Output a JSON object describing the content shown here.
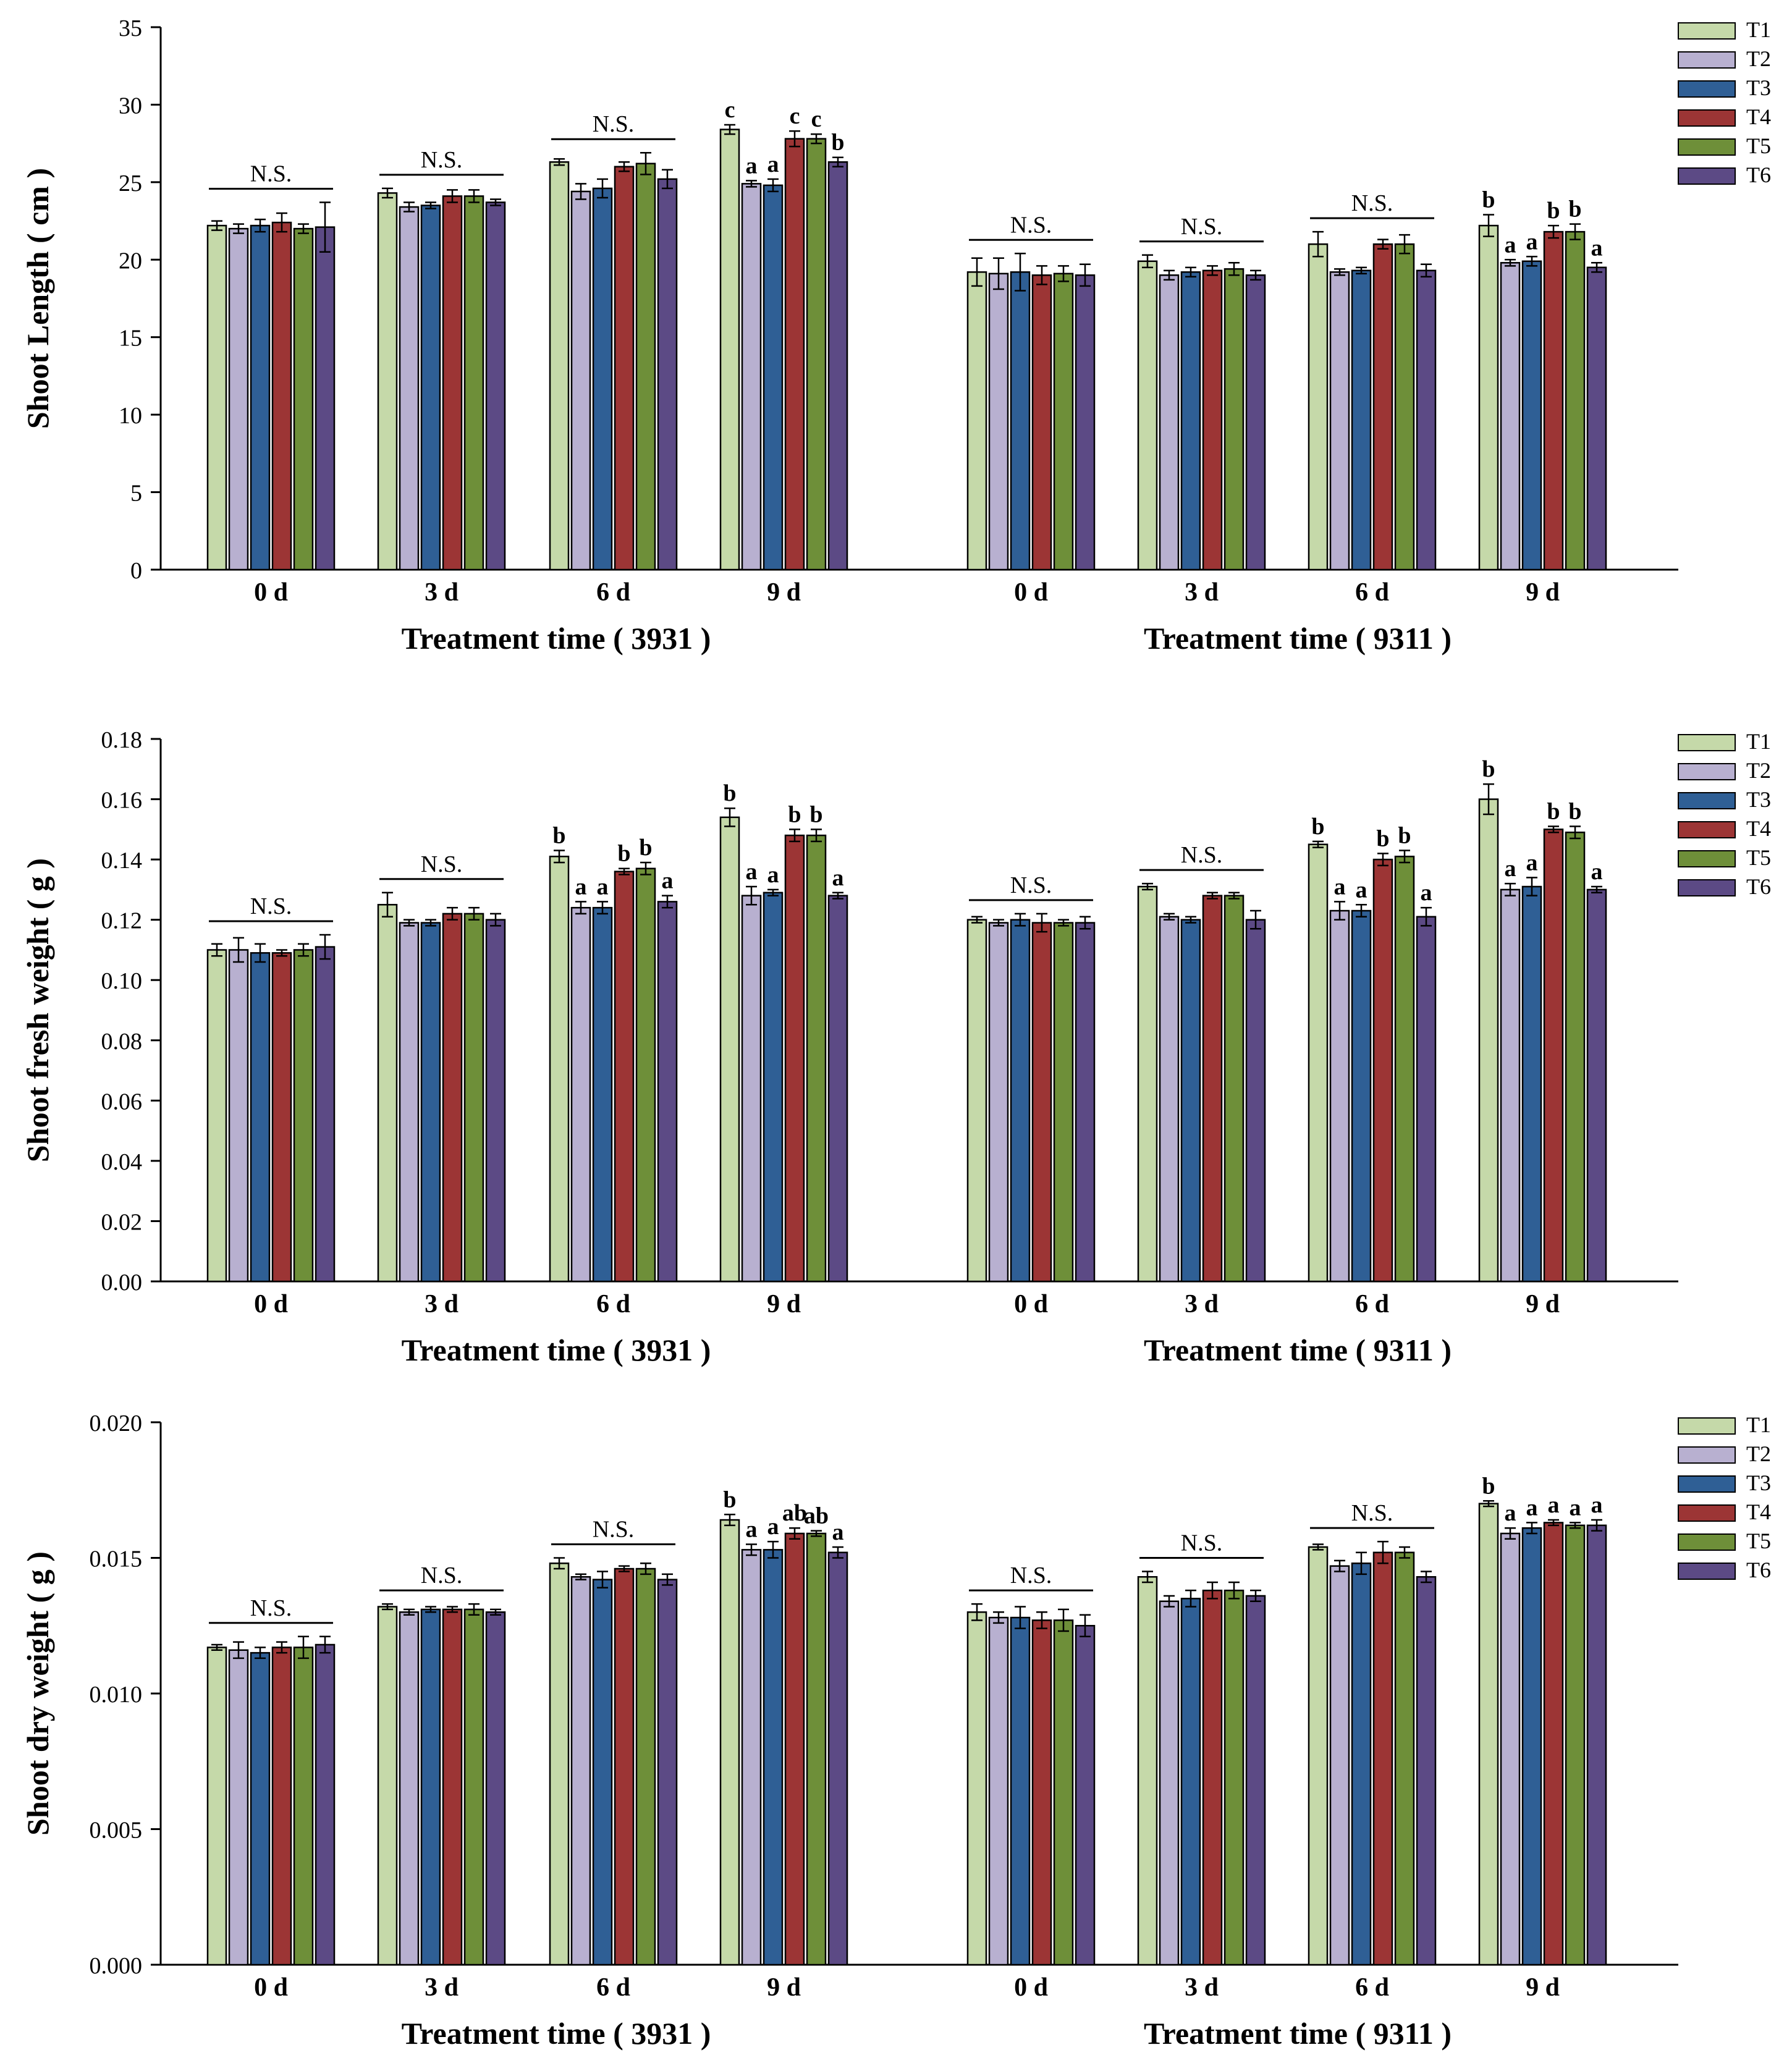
{
  "colors": {
    "T1": "#c5d9a9",
    "T2": "#b8b0d0",
    "T3": "#2f5f95",
    "T4": "#9c3535",
    "T5": "#6e8f39",
    "T6": "#5c4a85"
  },
  "chart_data": [
    {
      "type": "bar",
      "ylabel": "Shoot Length ( cm )",
      "ylim": [
        0,
        35
      ],
      "yticks": [
        "0",
        "5",
        "10",
        "15",
        "20",
        "25",
        "30",
        "35"
      ],
      "series_names": [
        "T1",
        "T2",
        "T3",
        "T4",
        "T5",
        "T6"
      ],
      "legend": "top-right",
      "groups": [
        {
          "xlabel": "Treatment time ( 3931 )",
          "categories": [
            "0 d",
            "3 d",
            "6 d",
            "9 d"
          ],
          "values": [
            [
              22.2,
              22.0,
              22.2,
              22.4,
              22.0,
              22.1
            ],
            [
              24.3,
              23.4,
              23.5,
              24.1,
              24.1,
              23.7
            ],
            [
              26.3,
              24.4,
              24.6,
              26.0,
              26.2,
              25.2
            ],
            [
              28.4,
              24.9,
              24.8,
              27.8,
              27.8,
              26.3
            ]
          ],
          "errors": [
            [
              0.3,
              0.3,
              0.4,
              0.6,
              0.3,
              1.6
            ],
            [
              0.3,
              0.3,
              0.2,
              0.4,
              0.4,
              0.2
            ],
            [
              0.2,
              0.5,
              0.6,
              0.3,
              0.7,
              0.6
            ],
            [
              0.3,
              0.2,
              0.4,
              0.5,
              0.3,
              0.3
            ]
          ],
          "letters": [
            [
              "",
              "",
              "",
              "",
              "",
              ""
            ],
            [
              "",
              "",
              "",
              "",
              "",
              ""
            ],
            [
              "",
              "",
              "",
              "",
              "",
              ""
            ],
            [
              "c",
              "a",
              "a",
              "c",
              "c",
              "b"
            ]
          ],
          "ns": [
            "N.S.",
            "N.S.",
            "N.S.",
            ""
          ]
        },
        {
          "xlabel": "Treatment time ( 9311 )",
          "categories": [
            "0 d",
            "3 d",
            "6 d",
            "9 d"
          ],
          "values": [
            [
              19.2,
              19.1,
              19.2,
              19.0,
              19.1,
              19.0
            ],
            [
              19.9,
              19.0,
              19.2,
              19.3,
              19.4,
              19.0
            ],
            [
              21.0,
              19.2,
              19.3,
              21.0,
              21.0,
              19.3
            ],
            [
              22.2,
              19.8,
              19.9,
              21.8,
              21.8,
              19.5
            ]
          ],
          "errors": [
            [
              0.9,
              1.0,
              1.2,
              0.6,
              0.5,
              0.7
            ],
            [
              0.4,
              0.3,
              0.3,
              0.3,
              0.4,
              0.3
            ],
            [
              0.8,
              0.2,
              0.2,
              0.3,
              0.6,
              0.4
            ],
            [
              0.7,
              0.2,
              0.3,
              0.4,
              0.5,
              0.3
            ]
          ],
          "letters": [
            [
              "",
              "",
              "",
              "",
              "",
              ""
            ],
            [
              "",
              "",
              "",
              "",
              "",
              ""
            ],
            [
              "",
              "",
              "",
              "",
              "",
              ""
            ],
            [
              "b",
              "a",
              "a",
              "b",
              "b",
              "a"
            ]
          ],
          "ns": [
            "N.S.",
            "N.S.",
            "N.S.",
            ""
          ]
        }
      ]
    },
    {
      "type": "bar",
      "ylabel": "Shoot fresh weight ( g )",
      "ylim": [
        0,
        0.18
      ],
      "yticks": [
        "0.00",
        "0.02",
        "0.04",
        "0.06",
        "0.08",
        "0.10",
        "0.12",
        "0.14",
        "0.16",
        "0.18"
      ],
      "series_names": [
        "T1",
        "T2",
        "T3",
        "T4",
        "T5",
        "T6"
      ],
      "legend": "top-right",
      "groups": [
        {
          "xlabel": "Treatment time ( 3931 )",
          "categories": [
            "0 d",
            "3 d",
            "6 d",
            "9 d"
          ],
          "values": [
            [
              0.11,
              0.11,
              0.109,
              0.109,
              0.11,
              0.111
            ],
            [
              0.125,
              0.119,
              0.119,
              0.122,
              0.122,
              0.12
            ],
            [
              0.141,
              0.124,
              0.124,
              0.136,
              0.137,
              0.126
            ],
            [
              0.154,
              0.128,
              0.129,
              0.148,
              0.148,
              0.128
            ]
          ],
          "errors": [
            [
              0.002,
              0.004,
              0.003,
              0.001,
              0.002,
              0.004
            ],
            [
              0.004,
              0.001,
              0.001,
              0.002,
              0.002,
              0.002
            ],
            [
              0.002,
              0.002,
              0.002,
              0.001,
              0.002,
              0.002
            ],
            [
              0.003,
              0.003,
              0.001,
              0.002,
              0.002,
              0.001
            ]
          ],
          "letters": [
            [
              "",
              "",
              "",
              "",
              "",
              ""
            ],
            [
              "",
              "",
              "",
              "",
              "",
              ""
            ],
            [
              "b",
              "a",
              "a",
              "b",
              "b",
              "a"
            ],
            [
              "b",
              "a",
              "a",
              "b",
              "b",
              "a"
            ]
          ],
          "ns": [
            "N.S.",
            "N.S.",
            "",
            ""
          ]
        },
        {
          "xlabel": "Treatment time ( 9311 )",
          "categories": [
            "0 d",
            "3 d",
            "6 d",
            "9 d"
          ],
          "values": [
            [
              0.12,
              0.119,
              0.12,
              0.119,
              0.119,
              0.119
            ],
            [
              0.131,
              0.121,
              0.12,
              0.128,
              0.128,
              0.12
            ],
            [
              0.145,
              0.123,
              0.123,
              0.14,
              0.141,
              0.121
            ],
            [
              0.16,
              0.13,
              0.131,
              0.15,
              0.149,
              0.13
            ]
          ],
          "errors": [
            [
              0.001,
              0.001,
              0.002,
              0.003,
              0.001,
              0.002
            ],
            [
              0.001,
              0.001,
              0.001,
              0.001,
              0.001,
              0.003
            ],
            [
              0.001,
              0.003,
              0.002,
              0.002,
              0.002,
              0.003
            ],
            [
              0.005,
              0.002,
              0.003,
              0.001,
              0.002,
              0.001
            ]
          ],
          "letters": [
            [
              "",
              "",
              "",
              "",
              "",
              ""
            ],
            [
              "",
              "",
              "",
              "",
              "",
              ""
            ],
            [
              "b",
              "a",
              "a",
              "b",
              "b",
              "a"
            ],
            [
              "b",
              "a",
              "a",
              "b",
              "b",
              "a"
            ]
          ],
          "ns": [
            "N.S.",
            "N.S.",
            "",
            ""
          ]
        }
      ]
    },
    {
      "type": "bar",
      "ylabel": "Shoot dry weight ( g )",
      "ylim": [
        0,
        0.02
      ],
      "yticks": [
        "0.000",
        "0.005",
        "0.010",
        "0.015",
        "0.020"
      ],
      "series_names": [
        "T1",
        "T2",
        "T3",
        "T4",
        "T5",
        "T6"
      ],
      "legend": "top-right",
      "groups": [
        {
          "xlabel": "Treatment time ( 3931 )",
          "categories": [
            "0 d",
            "3 d",
            "6 d",
            "9 d"
          ],
          "values": [
            [
              0.0117,
              0.0116,
              0.0115,
              0.0117,
              0.0117,
              0.0118
            ],
            [
              0.0132,
              0.013,
              0.0131,
              0.0131,
              0.0131,
              0.013
            ],
            [
              0.0148,
              0.0143,
              0.0142,
              0.0146,
              0.0146,
              0.0142
            ],
            [
              0.0164,
              0.0153,
              0.0153,
              0.0159,
              0.0159,
              0.0152
            ]
          ],
          "errors": [
            [
              0.0001,
              0.0003,
              0.0002,
              0.0002,
              0.0004,
              0.0003
            ],
            [
              0.0001,
              0.0001,
              0.0001,
              0.0001,
              0.0002,
              0.0001
            ],
            [
              0.0002,
              0.0001,
              0.0003,
              0.0001,
              0.0002,
              0.0002
            ],
            [
              0.0002,
              0.0002,
              0.0003,
              0.0002,
              0.0001,
              0.0002
            ]
          ],
          "letters": [
            [
              "",
              "",
              "",
              "",
              "",
              ""
            ],
            [
              "",
              "",
              "",
              "",
              "",
              ""
            ],
            [
              "",
              "",
              "",
              "",
              "",
              ""
            ],
            [
              "b",
              "a",
              "a",
              "ab",
              "ab",
              "a"
            ]
          ],
          "ns": [
            "N.S.",
            "N.S.",
            "N.S.",
            ""
          ]
        },
        {
          "xlabel": "Treatment time ( 9311 )",
          "categories": [
            "0 d",
            "3 d",
            "6 d",
            "9 d"
          ],
          "values": [
            [
              0.013,
              0.0128,
              0.0128,
              0.0127,
              0.0127,
              0.0125
            ],
            [
              0.0143,
              0.0134,
              0.0135,
              0.0138,
              0.0138,
              0.0136
            ],
            [
              0.0154,
              0.0147,
              0.0148,
              0.0152,
              0.0152,
              0.0143
            ],
            [
              0.017,
              0.0159,
              0.0161,
              0.0163,
              0.0162,
              0.0162
            ]
          ],
          "errors": [
            [
              0.0003,
              0.0002,
              0.0004,
              0.0003,
              0.0004,
              0.0004
            ],
            [
              0.0002,
              0.0002,
              0.0003,
              0.0003,
              0.0003,
              0.0002
            ],
            [
              0.0001,
              0.0002,
              0.0004,
              0.0004,
              0.0002,
              0.0002
            ],
            [
              0.0001,
              0.0002,
              0.0002,
              0.0001,
              0.0001,
              0.0002
            ]
          ],
          "letters": [
            [
              "",
              "",
              "",
              "",
              "",
              ""
            ],
            [
              "",
              "",
              "",
              "",
              "",
              ""
            ],
            [
              "",
              "",
              "",
              "",
              "",
              ""
            ],
            [
              "b",
              "a",
              "a",
              "a",
              "a",
              "a"
            ]
          ],
          "ns": [
            "N.S.",
            "N.S.",
            "N.S.",
            ""
          ]
        }
      ]
    }
  ]
}
